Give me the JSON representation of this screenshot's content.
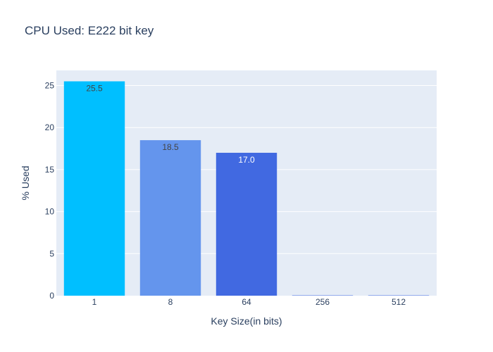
{
  "chart_data": {
    "type": "bar",
    "title": "CPU Used: E222 bit key",
    "xlabel": "Key Size(in bits)",
    "ylabel": "% Used",
    "categories": [
      "1",
      "8",
      "64",
      "256",
      "512"
    ],
    "values": [
      25.5,
      18.5,
      17.0,
      0,
      0
    ],
    "data_labels": [
      "25.5",
      "18.5",
      "17.0",
      "",
      ""
    ],
    "bar_colors": [
      "#00bfff",
      "#6495ed",
      "#4169e1",
      "#4169e1",
      "#4169e1"
    ],
    "label_colors": [
      "#444444",
      "#444444",
      "#ffffff",
      "#ffffff",
      "#ffffff"
    ],
    "ylim": [
      0,
      25.5
    ],
    "yticks": [
      0,
      5,
      10,
      15,
      20,
      25
    ],
    "grid": true,
    "plot_bgcolor": "#e5ecf6",
    "text_color": "#2a3f5f"
  }
}
